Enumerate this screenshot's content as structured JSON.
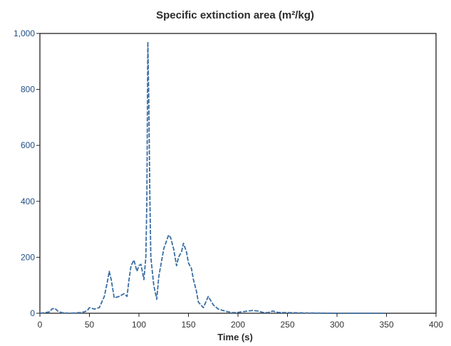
{
  "chart_data": {
    "type": "line",
    "title": "Specific extinction area (m²/kg)",
    "xlabel": "Time (s)",
    "ylabel": "",
    "xlim": [
      0,
      400
    ],
    "ylim": [
      0,
      1000
    ],
    "xticks": [
      0,
      50,
      100,
      150,
      200,
      250,
      300,
      350,
      400
    ],
    "xtick_labels": [
      "0",
      "50",
      "100",
      "150",
      "200",
      "250",
      "300",
      "350",
      "400"
    ],
    "yticks": [
      0,
      200,
      400,
      600,
      800,
      1000
    ],
    "ytick_labels": [
      "0",
      "200",
      "400",
      "600",
      "800",
      "1,000"
    ],
    "grid": false,
    "legend": "none",
    "line_color": "#3a6ea5",
    "series": [
      {
        "x": [
          0,
          5,
          10,
          12,
          15,
          18,
          22,
          30,
          40,
          45,
          48,
          50,
          55,
          60,
          65,
          68,
          70,
          72,
          75,
          80,
          85,
          88,
          90,
          92,
          95,
          98,
          100,
          102,
          105,
          107,
          108,
          109,
          110,
          111,
          112,
          115,
          118,
          120,
          125,
          128,
          130,
          132,
          135,
          138,
          140,
          143,
          145,
          148,
          150,
          153,
          155,
          158,
          160,
          165,
          170,
          175,
          180,
          185,
          190,
          195,
          200,
          210,
          215,
          220,
          225,
          230,
          235,
          240,
          250,
          270,
          300,
          350
        ],
        "y": [
          0,
          2,
          5,
          15,
          18,
          8,
          2,
          0,
          2,
          5,
          10,
          20,
          15,
          20,
          60,
          110,
          150,
          120,
          55,
          60,
          70,
          60,
          120,
          170,
          190,
          150,
          170,
          175,
          120,
          200,
          400,
          970,
          750,
          420,
          200,
          100,
          50,
          130,
          230,
          260,
          280,
          270,
          230,
          170,
          200,
          220,
          250,
          220,
          180,
          160,
          120,
          80,
          40,
          20,
          60,
          30,
          15,
          10,
          5,
          2,
          3,
          8,
          10,
          8,
          3,
          2,
          8,
          3,
          2,
          1,
          0,
          0
        ]
      }
    ]
  }
}
